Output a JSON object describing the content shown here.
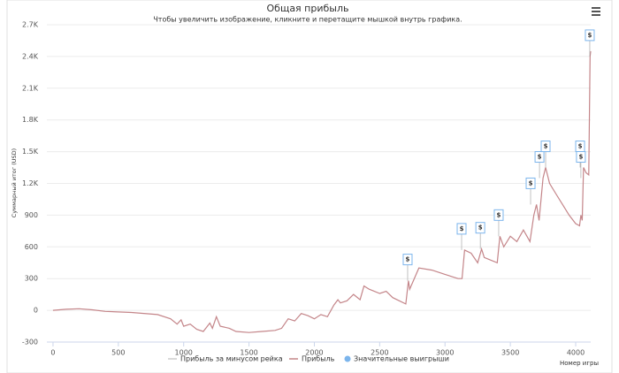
{
  "chart_data": {
    "type": "line",
    "title": "Общая прибыль",
    "subtitle": "Чтобы увеличить изображение, кликните и перетащите мышкой внутрь графика.",
    "y_label": "Суммарный итог (USD)",
    "x_label": "Номер игры",
    "xlim": [
      -47,
      4115
    ],
    "xticks": [
      0,
      500,
      1000,
      1500,
      2000,
      2500,
      3000,
      3500,
      4000
    ],
    "ylim": [
      -300,
      2700
    ],
    "yticks": [
      -300,
      0,
      300,
      600,
      900,
      {
        "value": 1200,
        "label": "1.2K"
      },
      {
        "value": 1500,
        "label": "1.5K"
      },
      {
        "value": 1800,
        "label": "1.8K"
      },
      {
        "value": 2100,
        "label": "2.1K"
      },
      {
        "value": 2400,
        "label": "2.4K"
      },
      {
        "value": 2700,
        "label": "2.7K"
      }
    ],
    "grid": true,
    "legend_entries": [
      {
        "name": "Прибыль за минусом рейка",
        "color": "#cccccc",
        "visible": false
      }
    ],
    "series": [
      {
        "name": "Прибыль",
        "color": "#c48589",
        "x": [
          0,
          100,
          200,
          300,
          400,
          600,
          800,
          900,
          950,
          980,
          1000,
          1050,
          1100,
          1150,
          1200,
          1220,
          1250,
          1280,
          1350,
          1400,
          1500,
          1600,
          1700,
          1750,
          1800,
          1850,
          1900,
          1950,
          2000,
          2050,
          2100,
          2150,
          2180,
          2200,
          2250,
          2300,
          2350,
          2380,
          2420,
          2500,
          2550,
          2600,
          2700,
          2720,
          2730,
          2800,
          2900,
          3000,
          3100,
          3130,
          3150,
          3200,
          3250,
          3280,
          3300,
          3400,
          3420,
          3450,
          3500,
          3550,
          3600,
          3650,
          3680,
          3700,
          3720,
          3750,
          3770,
          3800,
          3850,
          3900,
          3950,
          4000,
          4030,
          4040,
          4050,
          4060,
          4080,
          4100,
          4110,
          4115
        ],
        "values": [
          0,
          10,
          15,
          5,
          -10,
          -20,
          -40,
          -80,
          -130,
          -90,
          -150,
          -130,
          -180,
          -200,
          -120,
          -170,
          -60,
          -150,
          -170,
          -200,
          -210,
          -200,
          -190,
          -170,
          -80,
          -100,
          -30,
          -50,
          -80,
          -40,
          -60,
          50,
          100,
          70,
          90,
          150,
          100,
          230,
          200,
          160,
          180,
          120,
          60,
          280,
          200,
          400,
          380,
          340,
          300,
          300,
          570,
          540,
          450,
          580,
          500,
          450,
          700,
          600,
          700,
          650,
          760,
          650,
          900,
          1000,
          850,
          1250,
          1350,
          1200,
          1100,
          1000,
          900,
          820,
          800,
          900,
          850,
          1350,
          1300,
          1280,
          2400,
          2450
        ]
      }
    ],
    "flags": {
      "name": "Значительные выигрыши",
      "color": "#7cb5ec",
      "label": "$",
      "x": [
        2714,
        3127,
        3270,
        3411,
        3655,
        3723,
        3770,
        4034,
        4040,
        4108
      ],
      "values": [
        280,
        570,
        580,
        700,
        1000,
        1250,
        1350,
        1350,
        1250,
        2400
      ]
    }
  }
}
